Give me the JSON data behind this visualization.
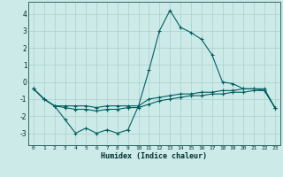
{
  "xlabel": "Humidex (Indice chaleur)",
  "background_color": "#cceae7",
  "grid_color": "#aacfcc",
  "line_color": "#006060",
  "x_values": [
    0,
    1,
    2,
    3,
    4,
    5,
    6,
    7,
    8,
    9,
    10,
    11,
    12,
    13,
    14,
    15,
    16,
    17,
    18,
    19,
    20,
    21,
    22,
    23
  ],
  "line1": [
    -0.4,
    -1.0,
    -1.4,
    -2.2,
    -3.0,
    -2.7,
    -3.0,
    -2.8,
    -3.0,
    -2.8,
    -1.4,
    0.7,
    3.0,
    4.2,
    3.2,
    2.9,
    2.5,
    1.6,
    0.0,
    -0.1,
    -0.4,
    -0.4,
    -0.5,
    -1.5
  ],
  "line2": [
    -0.4,
    -1.0,
    -1.4,
    -1.4,
    -1.4,
    -1.4,
    -1.5,
    -1.4,
    -1.4,
    -1.4,
    -1.4,
    -1.0,
    -0.9,
    -0.8,
    -0.7,
    -0.7,
    -0.6,
    -0.6,
    -0.5,
    -0.5,
    -0.4,
    -0.4,
    -0.4,
    -1.5
  ],
  "line3": [
    -0.4,
    -1.0,
    -1.4,
    -1.5,
    -1.6,
    -1.6,
    -1.7,
    -1.6,
    -1.6,
    -1.5,
    -1.5,
    -1.3,
    -1.1,
    -1.0,
    -0.9,
    -0.8,
    -0.8,
    -0.7,
    -0.7,
    -0.6,
    -0.6,
    -0.5,
    -0.5,
    -1.5
  ],
  "ylim": [
    -3.7,
    4.7
  ],
  "xlim": [
    -0.5,
    23.5
  ],
  "yticks": [
    -3,
    -2,
    -1,
    0,
    1,
    2,
    3,
    4
  ],
  "xticks": [
    0,
    1,
    2,
    3,
    4,
    5,
    6,
    7,
    8,
    9,
    10,
    11,
    12,
    13,
    14,
    15,
    16,
    17,
    18,
    19,
    20,
    21,
    22,
    23
  ]
}
